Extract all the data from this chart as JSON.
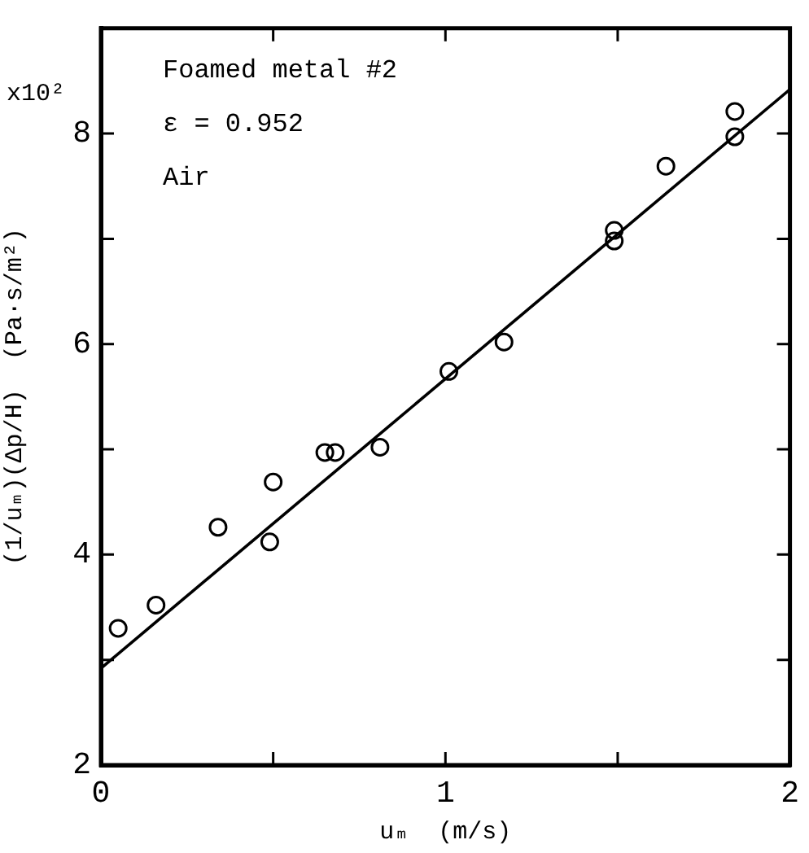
{
  "chart_data": {
    "type": "scatter",
    "xlabel": "uₘ  (m/s)",
    "ylabel": "(1/uₘ)(Δp/H)  (Pa·s/m²)",
    "annotations": [
      "Foamed metal #2",
      "ε = 0.952",
      "Air",
      "x10²"
    ],
    "xlim": [
      0,
      2
    ],
    "ylim": [
      2,
      9
    ],
    "xticks": [
      0,
      {
        "value": 0.5,
        "label": null
      },
      1,
      {
        "value": 1.5,
        "label": null
      },
      2
    ],
    "yticks": [
      2,
      {
        "value": 3,
        "label": null
      },
      4,
      {
        "value": 5,
        "label": null
      },
      6,
      {
        "value": 7,
        "label": null
      },
      8
    ],
    "grid": false,
    "legend": false,
    "marker": "circle",
    "series": [
      {
        "color": "#000000",
        "x": [
          0.05,
          0.16,
          0.34,
          0.49,
          0.5,
          0.65,
          0.68,
          0.81,
          1.01,
          1.17,
          1.49,
          1.49,
          1.64,
          1.84,
          1.84
        ],
        "values": [
          3.3,
          3.52,
          4.26,
          4.12,
          4.69,
          4.97,
          4.97,
          5.02,
          5.74,
          6.02,
          6.98,
          7.08,
          7.69,
          8.21,
          7.97
        ]
      },
      {
        "type": "line",
        "color": "#000000",
        "marker": "none",
        "line_style": "solid",
        "x": [
          0,
          2
        ],
        "values": [
          2.92,
          8.42
        ]
      }
    ]
  }
}
